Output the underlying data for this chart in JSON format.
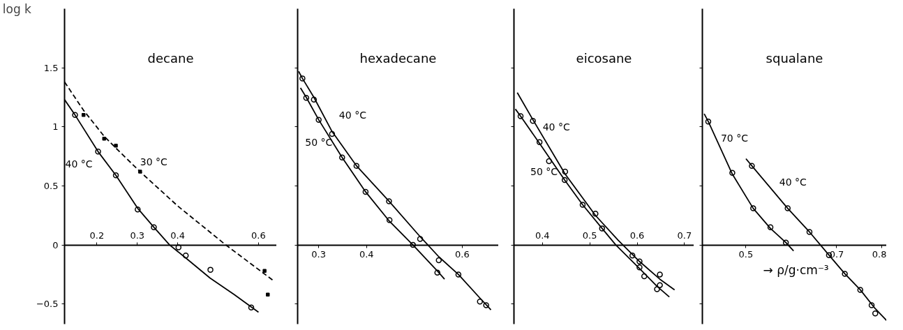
{
  "chart_data": [
    {
      "type": "scatter",
      "title": "decane",
      "ylabel": "log k",
      "xlim": [
        0.12,
        0.645
      ],
      "ylim": [
        -0.67,
        2.0
      ],
      "xticks": [
        0.2,
        0.3,
        0.4,
        0.6
      ],
      "yticks": [
        -0.5,
        0.0,
        0.5,
        1.0,
        1.5
      ],
      "grid": false,
      "series": [
        {
          "marker": "circle",
          "color": "#000000",
          "x": [
            0.146,
            0.203,
            0.247,
            0.301,
            0.341,
            0.402,
            0.42,
            0.481,
            0.582
          ],
          "values": [
            1.1,
            0.79,
            0.59,
            0.3,
            0.15,
            -0.02,
            -0.09,
            -0.21,
            -0.53
          ]
        },
        {
          "type": "line",
          "name": "40 °C",
          "marker": "none",
          "line_style": "solid",
          "color": "#000000",
          "x": [
            0.12,
            0.146,
            0.203,
            0.247,
            0.301,
            0.341,
            0.38,
            0.42,
            0.48,
            0.54,
            0.6
          ],
          "values": [
            1.23,
            1.1,
            0.79,
            0.59,
            0.31,
            0.15,
            0.0,
            -0.11,
            -0.28,
            -0.42,
            -0.57
          ]
        },
        {
          "marker": "square",
          "color": "#000000",
          "x": [
            0.167,
            0.218,
            0.247,
            0.307,
            0.615,
            0.623
          ],
          "values": [
            1.1,
            0.9,
            0.84,
            0.62,
            -0.22,
            -0.42
          ]
        },
        {
          "type": "line",
          "name": "30 °C",
          "marker": "none",
          "line_style": "dashed",
          "color": "#000000",
          "x": [
            0.12,
            0.167,
            0.218,
            0.247,
            0.307,
            0.4,
            0.519,
            0.636
          ],
          "values": [
            1.38,
            1.14,
            0.92,
            0.82,
            0.62,
            0.33,
            0.0,
            -0.3
          ]
        }
      ]
    },
    {
      "type": "scatter",
      "title": "hexadecane",
      "xlim": [
        0.256,
        0.676
      ],
      "ylim": [
        -0.67,
        2.0
      ],
      "xticks": [
        0.3,
        0.4,
        0.6
      ],
      "yticks": [
        -0.5,
        0.0,
        0.5,
        1.0,
        1.5
      ],
      "tick_labels": "x",
      "grid": false,
      "series": [
        {
          "marker": "circle",
          "color": "#000000",
          "x": [
            0.266,
            0.29,
            0.328,
            0.379,
            0.447,
            0.512,
            0.551,
            0.592,
            0.637,
            0.65
          ],
          "values": [
            1.41,
            1.23,
            0.94,
            0.67,
            0.37,
            0.05,
            -0.13,
            -0.25,
            -0.48,
            -0.51
          ]
        },
        {
          "type": "line",
          "name": "40 °C",
          "marker": "none",
          "line_style": "solid",
          "color": "#000000",
          "x": [
            0.258,
            0.266,
            0.29,
            0.328,
            0.379,
            0.447,
            0.512,
            0.551,
            0.592,
            0.637,
            0.66
          ],
          "values": [
            1.47,
            1.41,
            1.25,
            0.96,
            0.67,
            0.37,
            0.07,
            -0.1,
            -0.25,
            -0.45,
            -0.55
          ]
        },
        {
          "marker": "circle",
          "color": "#000000",
          "x": [
            0.274,
            0.3,
            0.349,
            0.398,
            0.448,
            0.497,
            0.548
          ],
          "values": [
            1.245,
            1.06,
            0.74,
            0.45,
            0.21,
            0.0,
            -0.235
          ]
        },
        {
          "type": "line",
          "name": "50 °C",
          "marker": "none",
          "line_style": "solid",
          "color": "#000000",
          "x": [
            0.262,
            0.274,
            0.3,
            0.349,
            0.398,
            0.448,
            0.497,
            0.548,
            0.563
          ],
          "values": [
            1.33,
            1.25,
            1.06,
            0.74,
            0.45,
            0.2,
            0.0,
            -0.22,
            -0.29
          ]
        }
      ]
    },
    {
      "type": "scatter",
      "title": "eicosane",
      "xlim": [
        0.34,
        0.72
      ],
      "ylim": [
        -0.67,
        2.0
      ],
      "xticks": [
        0.4,
        0.5,
        0.6,
        0.7
      ],
      "yticks": [
        -0.5,
        0.0,
        0.5,
        1.0,
        1.5
      ],
      "tick_labels": "x",
      "grid": false,
      "series": [
        {
          "marker": "circle",
          "color": "#000000",
          "x": [
            0.38,
            0.448,
            0.512,
            0.59,
            0.605,
            0.648,
            0.648
          ],
          "values": [
            1.05,
            0.62,
            0.265,
            -0.09,
            -0.14,
            -0.25,
            -0.34
          ]
        },
        {
          "type": "line",
          "name": "40 °C",
          "marker": "none",
          "line_style": "solid",
          "color": "#000000",
          "x": [
            0.347,
            0.38,
            0.448,
            0.512,
            0.56,
            0.605,
            0.648,
            0.679
          ],
          "values": [
            1.29,
            1.06,
            0.6,
            0.25,
            0.04,
            -0.14,
            -0.29,
            -0.38
          ]
        },
        {
          "marker": "circle",
          "color": "#000000",
          "x": [
            0.354,
            0.394,
            0.414,
            0.447,
            0.485,
            0.526,
            0.605,
            0.615,
            0.642
          ],
          "values": [
            1.09,
            0.87,
            0.71,
            0.55,
            0.34,
            0.14,
            -0.19,
            -0.265,
            -0.375
          ]
        },
        {
          "type": "line",
          "name": "50 °C",
          "marker": "none",
          "line_style": "solid",
          "color": "#000000",
          "x": [
            0.343,
            0.354,
            0.394,
            0.447,
            0.485,
            0.526,
            0.555,
            0.605,
            0.642,
            0.668
          ],
          "values": [
            1.15,
            1.09,
            0.86,
            0.55,
            0.34,
            0.14,
            0.0,
            -0.2,
            -0.35,
            -0.44
          ]
        }
      ]
    },
    {
      "type": "scatter",
      "title": "squalane",
      "xlabel": "→ ρ/g·cm⁻³",
      "xlim": [
        0.404,
        0.81
      ],
      "ylim": [
        -0.67,
        2.0
      ],
      "xticks": [
        0.5,
        0.7,
        0.8
      ],
      "yticks": [
        -0.5,
        0.0,
        0.5,
        1.0,
        1.5
      ],
      "tick_labels": "x",
      "grid": false,
      "series": [
        {
          "marker": "circle",
          "color": "#000000",
          "x": [
            0.417,
            0.47,
            0.516,
            0.554,
            0.588
          ],
          "values": [
            1.045,
            0.61,
            0.31,
            0.15,
            0.02
          ]
        },
        {
          "type": "line",
          "name": "70 °C",
          "marker": "none",
          "line_style": "solid",
          "color": "#000000",
          "x": [
            0.408,
            0.417,
            0.47,
            0.516,
            0.554,
            0.588,
            0.605
          ],
          "values": [
            1.11,
            1.045,
            0.6,
            0.31,
            0.14,
            0.02,
            -0.05
          ]
        },
        {
          "marker": "circle",
          "color": "#000000",
          "x": [
            0.513,
            0.592,
            0.64,
            0.683,
            0.718,
            0.752,
            0.777,
            0.785
          ],
          "values": [
            0.67,
            0.31,
            0.11,
            -0.086,
            -0.244,
            -0.38,
            -0.51,
            -0.58
          ]
        },
        {
          "type": "line",
          "name": "40 °C",
          "marker": "none",
          "line_style": "solid",
          "color": "#000000",
          "x": [
            0.5,
            0.513,
            0.592,
            0.64,
            0.683,
            0.718,
            0.752,
            0.785,
            0.81
          ],
          "values": [
            0.73,
            0.67,
            0.31,
            0.11,
            -0.086,
            -0.244,
            -0.38,
            -0.54,
            -0.64
          ]
        }
      ]
    }
  ]
}
